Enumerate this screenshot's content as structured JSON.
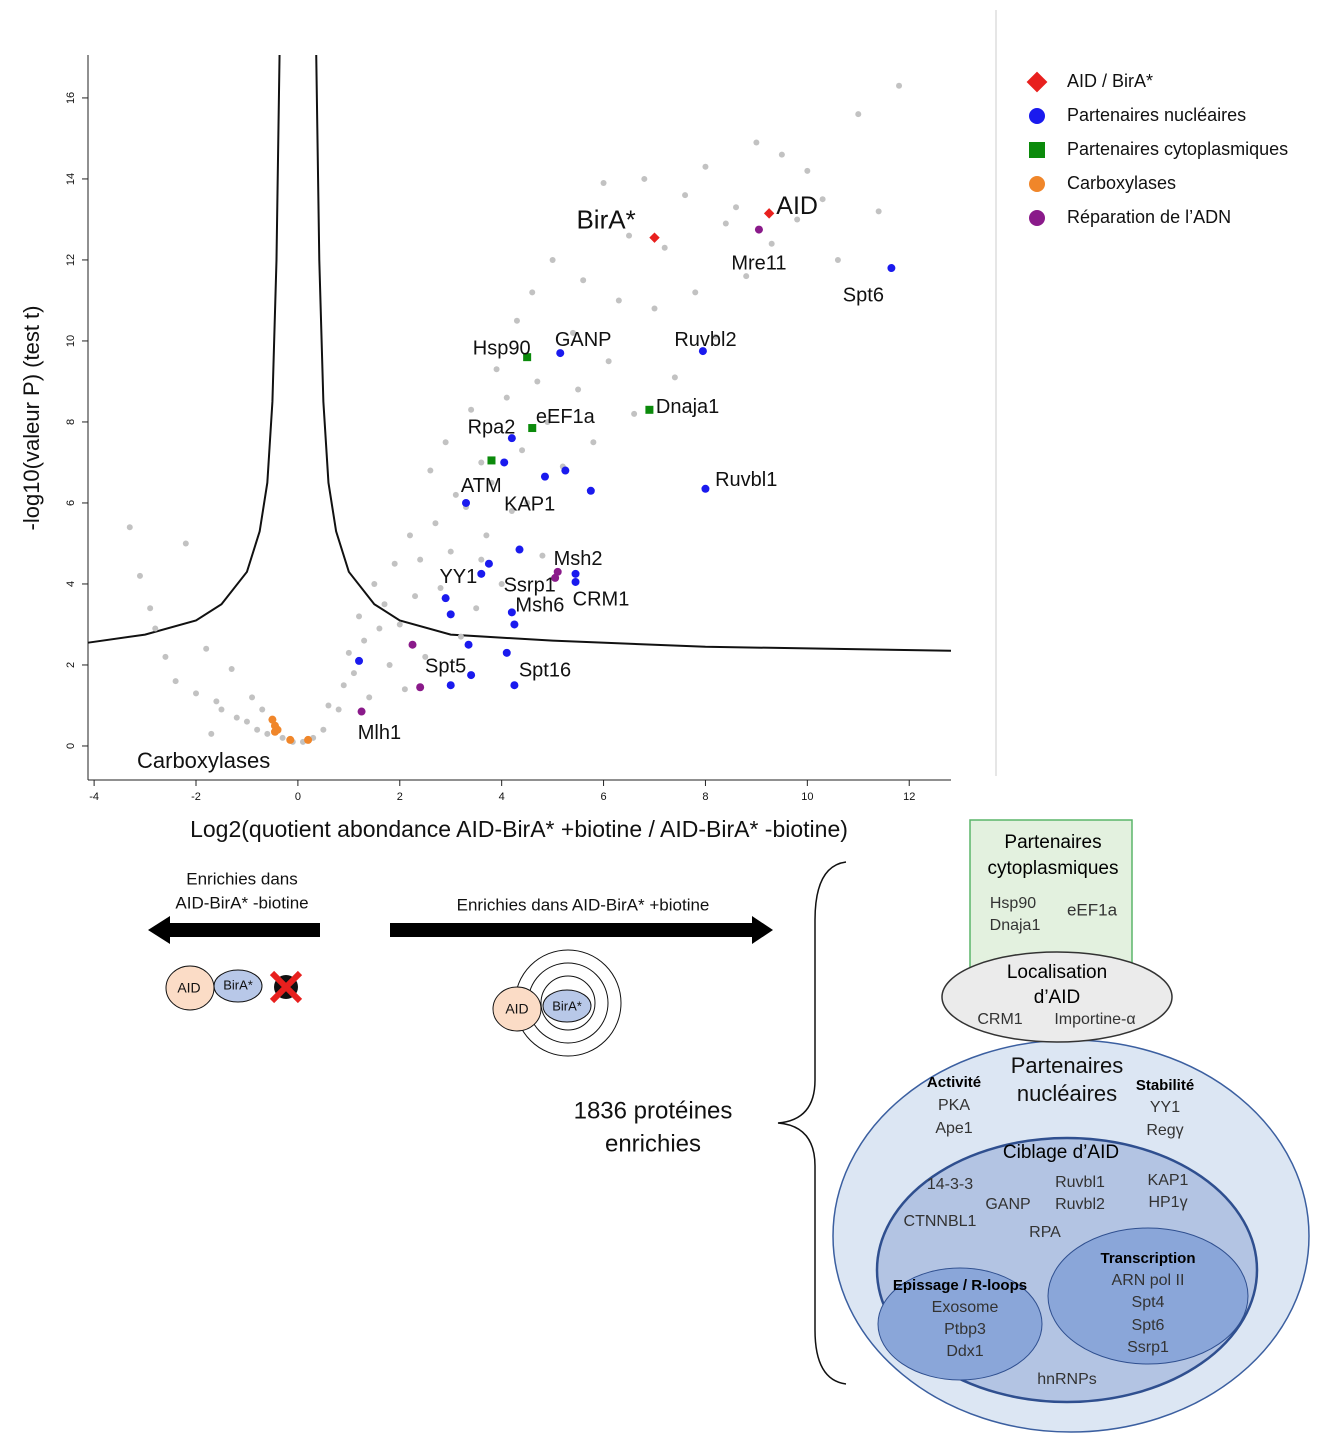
{
  "chart_data": {
    "type": "scatter",
    "xlabel": "Log2(quotient abondance AID-BirA* +biotine / AID-BirA* -biotine)",
    "ylabel": "-log10(valeur P) (test t)",
    "xlim": [
      -4.12,
      12.82
    ],
    "ylim": [
      -0.84,
      17.06
    ],
    "xticks": [
      -4,
      -2,
      0,
      2,
      4,
      6,
      8,
      10,
      12
    ],
    "yticks": [
      0,
      2,
      4,
      6,
      8,
      10,
      12,
      14,
      16
    ],
    "legend": "top-right",
    "series": [
      {
        "color": "#c2c2c2",
        "marker": "circle",
        "x": [
          -3.3,
          -3.1,
          -2.9,
          -2.6,
          -2.4,
          -2.2,
          -2.0,
          -1.8,
          -1.6,
          -1.5,
          -1.3,
          -1.2,
          -1.0,
          -0.9,
          -0.8,
          -0.7,
          -0.6,
          -0.3,
          -0.1,
          0.1,
          0.3,
          0.5,
          0.6,
          0.8,
          0.9,
          1.0,
          1.1,
          1.2,
          1.3,
          1.4,
          1.5,
          1.6,
          1.7,
          1.8,
          1.9,
          2.0,
          2.1,
          2.2,
          2.3,
          2.4,
          2.5,
          2.6,
          2.7,
          2.8,
          2.9,
          3.0,
          3.1,
          3.2,
          3.3,
          3.4,
          3.5,
          3.6,
          3.7,
          3.8,
          3.9,
          4.0,
          4.1,
          4.2,
          4.3,
          4.4,
          4.5,
          4.6,
          4.7,
          4.8,
          4.9,
          5.0,
          5.2,
          5.4,
          5.5,
          5.6,
          5.8,
          6.0,
          6.1,
          6.3,
          6.5,
          6.6,
          6.8,
          7.0,
          7.2,
          7.4,
          7.6,
          7.8,
          8.0,
          8.2,
          8.4,
          8.6,
          8.8,
          9.0,
          9.3,
          9.5,
          9.8,
          10.0,
          10.3,
          10.6,
          11.0,
          11.4,
          11.8,
          -1.7,
          -2.8,
          3.6
        ],
        "values": [
          5.4,
          4.2,
          3.4,
          2.2,
          1.6,
          5.0,
          1.3,
          2.4,
          1.1,
          0.9,
          1.9,
          0.7,
          0.6,
          1.2,
          0.4,
          0.9,
          0.3,
          0.2,
          0.1,
          0.1,
          0.2,
          0.4,
          1.0,
          0.9,
          1.5,
          2.3,
          1.8,
          3.2,
          2.6,
          1.2,
          4.0,
          2.9,
          3.5,
          2.0,
          4.5,
          3.0,
          1.4,
          5.2,
          3.7,
          4.6,
          2.2,
          6.8,
          5.5,
          3.9,
          7.5,
          4.8,
          6.2,
          2.7,
          5.9,
          8.3,
          3.4,
          7.0,
          5.2,
          6.5,
          9.3,
          4.0,
          8.6,
          5.8,
          10.5,
          7.3,
          6.0,
          11.2,
          9.0,
          4.7,
          8.0,
          12.0,
          6.9,
          10.2,
          8.8,
          11.5,
          7.5,
          13.9,
          9.5,
          11.0,
          12.6,
          8.2,
          14.0,
          10.8,
          12.3,
          9.1,
          13.6,
          11.2,
          14.3,
          10.1,
          12.9,
          13.3,
          11.6,
          14.9,
          12.4,
          14.6,
          13.0,
          14.2,
          13.5,
          12.0,
          15.6,
          13.2,
          16.3,
          0.3,
          2.9,
          4.6
        ]
      },
      {
        "name": "Carboxylases",
        "color": "#f0862a",
        "marker": "circle",
        "x": [
          -0.5,
          -0.45,
          -0.4,
          -0.45,
          -0.15,
          0.2
        ],
        "values": [
          0.65,
          0.5,
          0.4,
          0.35,
          0.15,
          0.15
        ]
      },
      {
        "name": "Réparation de l’ADN",
        "color": "#8a1a8a",
        "marker": "circle",
        "x": [
          9.05,
          5.1,
          5.05,
          2.25,
          2.4,
          1.25
        ],
        "values": [
          12.75,
          4.3,
          4.15,
          2.5,
          1.45,
          0.85
        ]
      },
      {
        "name": "Partenaires cytoplasmiques",
        "color": "#0b8a0b",
        "marker": "square",
        "x": [
          4.5,
          4.6,
          6.9,
          3.8
        ],
        "values": [
          9.6,
          7.85,
          8.3,
          7.05
        ]
      },
      {
        "name": "Partenaires nucléaires",
        "color": "#1a1aee",
        "marker": "circle",
        "x": [
          11.65,
          7.95,
          5.15,
          4.2,
          8.0,
          3.3,
          4.05,
          4.85,
          5.25,
          5.75,
          4.35,
          3.75,
          3.6,
          5.45,
          5.45,
          2.9,
          3.0,
          4.2,
          4.25,
          1.2,
          3.35,
          4.1,
          3.4,
          3.0,
          4.25
        ],
        "values": [
          11.8,
          9.75,
          9.7,
          7.6,
          6.35,
          6.0,
          7.0,
          6.65,
          6.8,
          6.3,
          4.85,
          4.5,
          4.25,
          4.25,
          4.05,
          3.65,
          3.25,
          3.3,
          3.0,
          2.1,
          2.5,
          2.3,
          1.75,
          1.5,
          1.5
        ]
      },
      {
        "name": "AID / BirA*",
        "color": "#e8201e",
        "marker": "diamond",
        "x": [
          7.0,
          9.25
        ],
        "values": [
          12.55,
          13.15
        ]
      }
    ],
    "legend_order": [
      5,
      4,
      3,
      1,
      2
    ],
    "threshold": {
      "color": "#111111",
      "x": [
        -4.12,
        -3,
        -2,
        -1.5,
        -1,
        -0.75,
        -0.6,
        -0.5,
        -0.42,
        -0.36,
        null,
        0.36,
        0.42,
        0.5,
        0.6,
        0.75,
        1,
        1.5,
        2,
        3,
        5,
        8,
        12.82
      ],
      "values": [
        2.55,
        2.75,
        3.1,
        3.5,
        4.3,
        5.3,
        6.5,
        8.5,
        12,
        17.06,
        null,
        17.06,
        12,
        8.5,
        6.5,
        5.3,
        4.3,
        3.5,
        3.1,
        2.75,
        2.6,
        2.45,
        2.35
      ]
    },
    "annotations": [
      {
        "text": "BirA*",
        "x": 6.05,
        "y": 12.95,
        "color": "#e8201e",
        "size": 26
      },
      {
        "text": "AID",
        "x": 9.8,
        "y": 13.3,
        "color": "#e8201e",
        "size": 25
      },
      {
        "text": "Mre11",
        "x": 9.05,
        "y": 11.9,
        "color": "#7a3aa0",
        "size": 20
      },
      {
        "text": "Spt6",
        "x": 11.1,
        "y": 11.1,
        "color": "#1a1aee",
        "size": 20
      },
      {
        "text": "Ruvbl2",
        "x": 8.0,
        "y": 10.0,
        "color": "#1a1aee",
        "size": 20
      },
      {
        "text": "GANP",
        "x": 5.6,
        "y": 10.0,
        "color": "#1a1aee",
        "size": 20
      },
      {
        "text": "Hsp90",
        "x": 4.0,
        "y": 9.8,
        "color": "#1f8a1f",
        "size": 20
      },
      {
        "text": "eEF1a",
        "x": 5.25,
        "y": 8.1,
        "color": "#1f8a1f",
        "size": 20
      },
      {
        "text": "Dnaja1",
        "x": 7.65,
        "y": 8.35,
        "color": "#1f8a1f",
        "size": 20
      },
      {
        "text": "Rpa2",
        "x": 3.8,
        "y": 7.85,
        "color": "#1a1aee",
        "size": 20
      },
      {
        "text": "Ruvbl1",
        "x": 8.8,
        "y": 6.55,
        "color": "#1a1aee",
        "size": 20
      },
      {
        "text": "ATM",
        "x": 3.6,
        "y": 6.4,
        "color": "#8b2f8b",
        "size": 20
      },
      {
        "text": "KAP1",
        "x": 4.55,
        "y": 5.95,
        "color": "#1a1aee",
        "size": 20
      },
      {
        "text": "Msh2",
        "x": 5.5,
        "y": 4.6,
        "color": "#8b2f8b",
        "size": 20
      },
      {
        "text": "YY1",
        "x": 3.15,
        "y": 4.15,
        "color": "#1a1aee",
        "size": 20
      },
      {
        "text": "Ssrp1",
        "x": 4.55,
        "y": 3.95,
        "color": "#1a1aee",
        "size": 20
      },
      {
        "text": "Msh6",
        "x": 4.75,
        "y": 3.45,
        "color": "#8b2f8b",
        "size": 20
      },
      {
        "text": "CRM1",
        "x": 5.95,
        "y": 3.6,
        "color": "#1a1aee",
        "size": 20
      },
      {
        "text": "Spt5",
        "x": 2.9,
        "y": 1.95,
        "color": "#1a1aee",
        "size": 20
      },
      {
        "text": "Spt16",
        "x": 4.85,
        "y": 1.85,
        "color": "#1a1aee",
        "size": 20
      },
      {
        "text": "Mlh1",
        "x": 1.6,
        "y": 0.3,
        "color": "#8b2f8b",
        "size": 20
      },
      {
        "text": "Carboxylases",
        "x": -1.85,
        "y": -0.4,
        "color": "#f0862a",
        "size": 22
      }
    ]
  },
  "diagram": {
    "left_label": [
      "Enrichies dans",
      "AID-BirA* -biotine"
    ],
    "right_label": "Enrichies dans AID-BirA* +biotine",
    "icon_labels": [
      "AID",
      "BirA*",
      "AID",
      "BirA*"
    ],
    "count_label": [
      "1836 protéines",
      "enrichies"
    ],
    "cytoplasmic": {
      "title": [
        "Partenaires",
        "cytoplasmiques"
      ],
      "items": [
        "Hsp90",
        "Dnaja1",
        "eEF1a"
      ]
    },
    "localisation": {
      "title": [
        "Localisation",
        "d’AID"
      ],
      "items": [
        "CRM1",
        "Importine-α"
      ]
    },
    "nuclear": {
      "title": [
        "Partenaires",
        "nucléaires"
      ],
      "activity": {
        "title": "Activité",
        "items": [
          "PKA",
          "Ape1"
        ]
      },
      "stability": {
        "title": "Stabilité",
        "items": [
          "YY1",
          "Regγ"
        ]
      },
      "targeting": {
        "title": "Ciblage d’AID",
        "items": [
          "14-3-3",
          "CTNNBL1",
          "GANP",
          "Ruvbl1",
          "Ruvbl2",
          "RPA",
          "KAP1",
          "HP1γ"
        ]
      },
      "splicing": {
        "title": "Epissage / R-loops",
        "items": [
          "Exosome",
          "Ptbp3",
          "Ddx1"
        ]
      },
      "transcription": {
        "title": "Transcription",
        "items": [
          "ARN pol II",
          "Spt4",
          "Spt6",
          "Ssrp1"
        ]
      },
      "other": "hnRNPs"
    }
  }
}
